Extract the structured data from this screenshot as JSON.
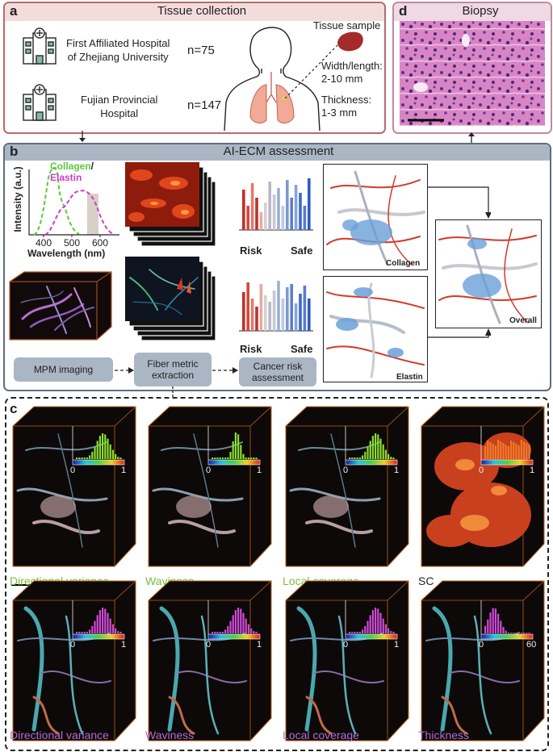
{
  "panel_a": {
    "letter": "a",
    "title": "Tissue collection",
    "hospitals": [
      {
        "name_line1": "First Affiliated Hospital",
        "name_line2": "of Zhejiang University",
        "count": "n=75"
      },
      {
        "name_line1": "Fujian Provincial",
        "name_line2": "Hospital",
        "count": "n=147"
      }
    ],
    "sample_label": "Tissue sample",
    "width_line1": "Width/length:",
    "width_line2": "2-10 mm",
    "thickness_line1": "Thickness:",
    "thickness_line2": "1-3 mm"
  },
  "panel_d": {
    "letter": "d",
    "title": "Biopsy"
  },
  "panel_b": {
    "letter": "b",
    "title": "AI-ECM assessment",
    "spectrum": {
      "legend_collagen": "Collagen",
      "legend_slash": "/",
      "legend_elastin": "Elastin",
      "ylabel": "Intensity (a.u.)",
      "xlabel": "Wavelength (nm)",
      "xticks": [
        "400",
        "500",
        "600"
      ]
    },
    "risk_label": "Risk",
    "safe_label": "Safe",
    "collagen_label": "Collagen",
    "elastin_label": "Elastin",
    "overall_label": "Overall",
    "steps": [
      {
        "line1": "MPM imaging",
        "line2": ""
      },
      {
        "line1": "Fiber metric",
        "line2": "extraction"
      },
      {
        "line1": "Cancer risk",
        "line2": "assessment"
      }
    ]
  },
  "panel_c": {
    "letter": "c",
    "row1": [
      {
        "label": "Directional variance",
        "min": "0",
        "max": "1"
      },
      {
        "label": "Waviness",
        "min": "0",
        "max": "1"
      },
      {
        "label": "Local coverage",
        "min": "0",
        "max": "1"
      },
      {
        "label": "SC",
        "min": "0",
        "max": "1"
      }
    ],
    "row2": [
      {
        "label": "Directional variance",
        "min": "0",
        "max": "1"
      },
      {
        "label": "Waviness",
        "min": "0",
        "max": "1"
      },
      {
        "label": "Local coverage",
        "min": "0",
        "max": "1"
      },
      {
        "label": "Thickness",
        "min": "0",
        "max": "60"
      }
    ]
  },
  "colors": {
    "panel_a_border": "#b86a6a",
    "panel_d_border": "#c08aa0",
    "panel_b_border": "#5d6e80",
    "panel_b_header": "#aab6c4",
    "collagen_green": "#5cc83c",
    "elastin_magenta": "#c93ec9",
    "collagen_label_green": "#7bbf3a",
    "elastin_label_purple": "#b46ad6"
  }
}
